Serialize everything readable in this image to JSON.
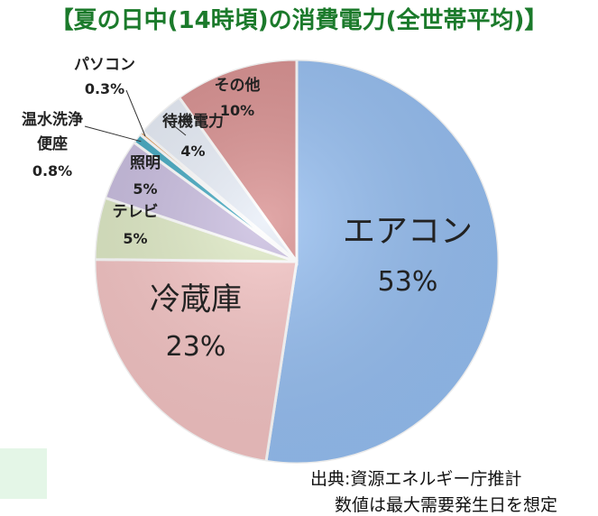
{
  "chart_data": {
    "type": "pie",
    "title": "【夏の日中(14時頃)の消費電力(全世帯平均)】",
    "start_angle_deg": 0,
    "direction": "clockwise",
    "slices": [
      {
        "name": "エアコン",
        "value": 53,
        "label": "53%",
        "color": "#96bff2"
      },
      {
        "name": "冷蔵庫",
        "value": 23,
        "label": "23%",
        "color": "#f5c4c4"
      },
      {
        "name": "テレビ",
        "value": 5,
        "label": "5%",
        "color": "#dfeac5"
      },
      {
        "name": "照明",
        "value": 5,
        "label": "5%",
        "color": "#c9bde0"
      },
      {
        "name": "温水洗浄便座",
        "value": 0.8,
        "label": "0.8%",
        "color": "#3fa7c0",
        "name_lines": [
          "温水洗浄",
          "便座"
        ]
      },
      {
        "name": "パソコン",
        "value": 0.3,
        "label": "0.3%",
        "color": "#e0944a"
      },
      {
        "name": "待機電力",
        "value": 4,
        "label": "4%",
        "color": "#e8eef8"
      },
      {
        "name": "その他",
        "value": 10,
        "label": "10%",
        "color": "#d98f8f"
      }
    ]
  },
  "footer": {
    "source": "出典:資源エネルギー庁推計",
    "note": "数値は最大需要発生日を想定"
  }
}
